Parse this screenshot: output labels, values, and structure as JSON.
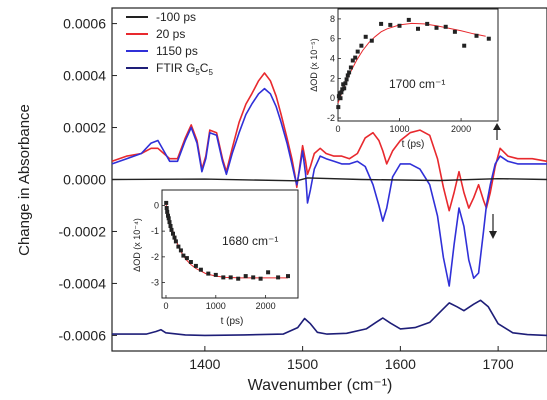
{
  "chart_data": [
    {
      "type": "line",
      "xlabel": "Wavenumber (cm⁻¹)",
      "ylabel": "Change in Absorbance",
      "xlim": [
        1305,
        1750
      ],
      "ylim": [
        -0.00066,
        0.00066
      ],
      "x_ticks": [
        "1400",
        "1500",
        "1600",
        "1700"
      ],
      "x_tick_values": [
        1400,
        1500,
        1600,
        1700
      ],
      "y_ticks": [
        "0.0006",
        "0.0004",
        "0.0002",
        "0.0000",
        "-0.0002",
        "-0.0004",
        "-0.0006"
      ],
      "y_tick_values": [
        0.0006,
        0.0004,
        0.0002,
        0.0,
        -0.0002,
        -0.0004,
        -0.0006
      ],
      "legend_position": "top-left",
      "series": [
        {
          "name": "-100 ps",
          "color": "#222222",
          "x": [
            1305,
            1400,
            1494,
            1505,
            1560,
            1640,
            1700,
            1750
          ],
          "y": [
            0.0,
            1.5e-06,
            -5e-06,
            6e-06,
            0.0,
            -4e-06,
            3e-06,
            0.0
          ]
        },
        {
          "name": "20 ps",
          "color": "#e8292e",
          "x": [
            1305,
            1320,
            1335,
            1345,
            1352,
            1358,
            1364,
            1372,
            1380,
            1386,
            1392,
            1397,
            1401,
            1405,
            1412,
            1418,
            1422,
            1428,
            1435,
            1442,
            1448,
            1455,
            1461,
            1467,
            1473,
            1478,
            1484,
            1489,
            1492,
            1494,
            1497,
            1500,
            1503,
            1505,
            1508,
            1512,
            1518,
            1524,
            1532,
            1540,
            1548,
            1556,
            1564,
            1572,
            1578,
            1582,
            1586,
            1592,
            1600,
            1610,
            1620,
            1630,
            1638,
            1644,
            1650,
            1655,
            1660,
            1665,
            1670,
            1675,
            1680,
            1685,
            1688,
            1692,
            1697,
            1702,
            1710,
            1720,
            1735,
            1750
          ],
          "y": [
            7e-05,
            9e-05,
            0.0001,
            0.00012,
            0.00012,
            0.0001,
            8e-05,
            8e-05,
            0.00016,
            0.00021,
            0.00015,
            4e-05,
            9e-05,
            0.00019,
            0.00018,
            8e-05,
            3e-05,
            0.00012,
            0.00022,
            0.00029,
            0.00033,
            0.00038,
            0.00041,
            0.00038,
            0.00032,
            0.00025,
            0.00016,
            8e-05,
            2e-05,
            -3e-05,
            5e-05,
            0.00013,
            7e-05,
            2e-05,
            5e-05,
            0.0001,
            0.00012,
            0.0001,
            9e-05,
            9e-05,
            8e-05,
            0.0001,
            0.00016,
            0.00018,
            0.00015,
            0.00011,
            6e-05,
            0.00011,
            0.00015,
            0.00018,
            0.00019,
            0.00017,
            8e-05,
            -3e-05,
            -0.00012,
            -5e-05,
            3e-05,
            -5e-05,
            -0.00011,
            -7e-05,
            -2e-05,
            -8e-05,
            -0.00011,
            -5e-05,
            5e-05,
            0.00012,
            9e-05,
            8e-05,
            8e-05,
            7e-05
          ]
        },
        {
          "name": "1150 ps",
          "color": "#3030d8",
          "x": [
            1305,
            1320,
            1335,
            1345,
            1352,
            1358,
            1364,
            1372,
            1380,
            1386,
            1392,
            1397,
            1401,
            1405,
            1412,
            1418,
            1422,
            1428,
            1435,
            1442,
            1448,
            1455,
            1461,
            1467,
            1473,
            1478,
            1484,
            1489,
            1492,
            1494,
            1497,
            1500,
            1503,
            1505,
            1508,
            1512,
            1518,
            1524,
            1532,
            1540,
            1548,
            1556,
            1564,
            1572,
            1578,
            1582,
            1586,
            1592,
            1600,
            1610,
            1620,
            1630,
            1638,
            1644,
            1650,
            1655,
            1660,
            1665,
            1670,
            1675,
            1680,
            1685,
            1688,
            1692,
            1697,
            1702,
            1710,
            1720,
            1735,
            1750
          ],
          "y": [
            6e-05,
            8e-05,
            0.0001,
            0.00014,
            0.00015,
            0.00011,
            7e-05,
            7e-05,
            0.00015,
            0.0002,
            0.00014,
            3e-05,
            8e-05,
            0.00018,
            0.00017,
            7e-05,
            2e-05,
            0.0001,
            0.00018,
            0.00025,
            0.00029,
            0.00033,
            0.00035,
            0.00033,
            0.00028,
            0.00022,
            0.00014,
            6e-05,
            1e-05,
            -2e-05,
            4e-05,
            0.00011,
            2e-05,
            -9e-05,
            -4e-05,
            4e-05,
            9e-05,
            8e-05,
            7e-05,
            6e-05,
            6e-05,
            7e-05,
            5e-05,
            -2e-05,
            -0.0001,
            -0.00016,
            -0.00011,
            1e-05,
            6e-05,
            6e-05,
            4e-05,
            -2e-05,
            -0.00014,
            -0.0003,
            -0.00041,
            -0.00025,
            -0.00011,
            -0.00018,
            -0.00031,
            -0.00038,
            -0.00036,
            -0.0002,
            -0.0001,
            -2e-05,
            6e-05,
            9e-05,
            7e-05,
            6e-05,
            6e-05,
            6e-05
          ]
        },
        {
          "name": "FTIR G₅C₅",
          "name_main": "FTIR G",
          "name_sub1": "5",
          "name_mid": "C",
          "name_sub2": "5",
          "color": "#1e1e78",
          "x": [
            1305,
            1340,
            1350,
            1355,
            1360,
            1380,
            1400,
            1440,
            1480,
            1495,
            1502,
            1508,
            1515,
            1525,
            1545,
            1565,
            1575,
            1582,
            1590,
            1600,
            1615,
            1630,
            1642,
            1650,
            1658,
            1665,
            1675,
            1682,
            1690,
            1700,
            1715,
            1730,
            1750
          ],
          "y": [
            -0.000595,
            -0.000595,
            -0.000585,
            -0.000578,
            -0.00059,
            -0.000598,
            -0.0006,
            -0.000598,
            -0.000595,
            -0.00057,
            -0.000535,
            -0.000555,
            -0.000588,
            -0.000595,
            -0.000592,
            -0.000575,
            -0.00055,
            -0.000533,
            -0.000553,
            -0.000575,
            -0.00057,
            -0.00055,
            -0.000505,
            -0.000475,
            -0.00049,
            -0.000505,
            -0.00048,
            -0.000465,
            -0.00049,
            -0.000555,
            -0.00059,
            -0.000597,
            -0.0006
          ]
        }
      ],
      "annotations": [
        "↑",
        "↓"
      ]
    },
    {
      "type": "scatter",
      "title": "1700 cm⁻¹",
      "xlabel": "t (ps)",
      "ylabel": "ΔOD (x 10⁻⁵)",
      "xlim": [
        0,
        2600
      ],
      "ylim": [
        -2.3,
        9
      ],
      "x_ticks": [
        "0",
        "1000",
        "2000"
      ],
      "x_tick_values": [
        0,
        1000,
        2000
      ],
      "y_ticks": [
        "-2",
        "0",
        "2",
        "4",
        "6",
        "8"
      ],
      "y_tick_values": [
        -2,
        0,
        2,
        4,
        6,
        8
      ],
      "points": {
        "x": [
          5,
          15,
          25,
          40,
          55,
          70,
          85,
          100,
          120,
          140,
          160,
          180,
          210,
          240,
          280,
          320,
          380,
          450,
          550,
          700,
          850,
          1000,
          1150,
          1300,
          1450,
          1600,
          1750,
          1900,
          2050,
          2250,
          2450
        ],
        "y": [
          -0.9,
          0.2,
          0.5,
          0.0,
          0.6,
          0.9,
          1.4,
          1.0,
          1.5,
          1.9,
          2.3,
          2.6,
          3.1,
          3.8,
          4.1,
          4.7,
          5.3,
          6.2,
          5.8,
          7.5,
          7.4,
          7.3,
          7.9,
          7.0,
          7.5,
          7.1,
          7.2,
          6.7,
          5.3,
          6.3,
          6.0
        ]
      },
      "fit": {
        "x": [
          0,
          100,
          200,
          300,
          400,
          500,
          600,
          700,
          800,
          1000,
          1200,
          1400,
          1600,
          1800,
          2000,
          2200,
          2400
        ],
        "y": [
          -0.5,
          1.2,
          2.6,
          3.8,
          4.8,
          5.6,
          6.2,
          6.7,
          7.0,
          7.4,
          7.55,
          7.5,
          7.3,
          7.05,
          6.8,
          6.5,
          6.25
        ]
      }
    },
    {
      "type": "scatter",
      "title": "1680 cm⁻¹",
      "xlabel": "t (ps)",
      "ylabel": "ΔOD (x 10⁻⁴)",
      "xlim": [
        -80,
        2650
      ],
      "ylim": [
        -3.6,
        0.6
      ],
      "x_ticks": [
        "0",
        "1000",
        "2000"
      ],
      "x_tick_values": [
        0,
        1000,
        2000
      ],
      "y_ticks": [
        "0",
        "-1",
        "-2",
        "-3"
      ],
      "y_tick_values": [
        0,
        -1,
        -2,
        -3
      ],
      "points": {
        "x": [
          5,
          15,
          25,
          40,
          55,
          70,
          90,
          110,
          140,
          170,
          200,
          250,
          300,
          350,
          420,
          500,
          600,
          700,
          850,
          1000,
          1150,
          1300,
          1450,
          1600,
          1750,
          1900,
          2050,
          2250,
          2450
        ],
        "y": [
          0.1,
          -0.1,
          -0.25,
          -0.4,
          -0.5,
          -0.65,
          -0.8,
          -0.95,
          -1.1,
          -1.25,
          -1.4,
          -1.6,
          -1.75,
          -1.95,
          -2.05,
          -2.2,
          -2.35,
          -2.5,
          -2.65,
          -2.7,
          -2.8,
          -2.8,
          -2.85,
          -2.75,
          -2.8,
          -2.85,
          -2.6,
          -2.8,
          -2.75
        ]
      },
      "fit": {
        "x": [
          0,
          100,
          200,
          300,
          400,
          500,
          600,
          800,
          1000,
          1200,
          1500,
          1800,
          2100,
          2450
        ],
        "y": [
          0.05,
          -0.75,
          -1.35,
          -1.8,
          -2.1,
          -2.3,
          -2.45,
          -2.65,
          -2.75,
          -2.8,
          -2.82,
          -2.82,
          -2.82,
          -2.82
        ]
      }
    }
  ]
}
